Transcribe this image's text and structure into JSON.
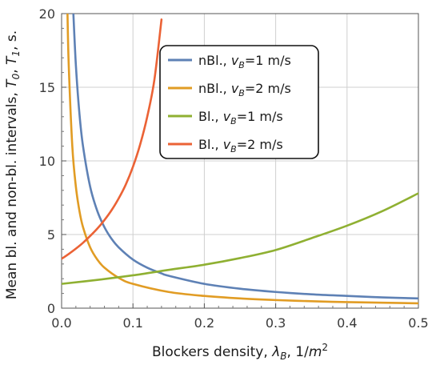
{
  "chart_data": {
    "type": "line",
    "title": "",
    "xlabel": "Blockers density, λ_B, 1/m²",
    "ylabel": "Mean bl. and non-bl. intervals, T_0, T_1, s.",
    "xlim": [
      0,
      0.5
    ],
    "ylim": [
      0,
      20
    ],
    "xticks": [
      0.0,
      0.1,
      0.2,
      0.3,
      0.4,
      0.5
    ],
    "xtick_labels": [
      "0.0",
      "0.1",
      "0.2",
      "0.3",
      "0.4",
      "0.5"
    ],
    "yticks": [
      0,
      5,
      10,
      15,
      20
    ],
    "ytick_labels": [
      "0",
      "5",
      "10",
      "15",
      "20"
    ],
    "grid": true,
    "legend_position": "top-center",
    "series": [
      {
        "name": "nBl., v_B=1 m/s",
        "color": "#5e81b5",
        "x": [
          0.0165,
          0.02,
          0.025,
          0.03,
          0.04,
          0.05,
          0.06,
          0.07,
          0.08,
          0.1,
          0.12,
          0.14,
          0.15,
          0.2,
          0.25,
          0.3,
          0.35,
          0.4,
          0.45,
          0.5
        ],
        "y": [
          20,
          16.5,
          13.2,
          11.0,
          8.25,
          6.6,
          5.5,
          4.71,
          4.13,
          3.3,
          2.75,
          2.36,
          2.2,
          1.65,
          1.32,
          1.1,
          0.94,
          0.83,
          0.73,
          0.66
        ]
      },
      {
        "name": "nBl., v_B=2 m/s",
        "color": "#e19c24",
        "x": [
          0.00825,
          0.01,
          0.015,
          0.02,
          0.025,
          0.03,
          0.04,
          0.05,
          0.06,
          0.08,
          0.1,
          0.15,
          0.2,
          0.25,
          0.3,
          0.35,
          0.4,
          0.45,
          0.5
        ],
        "y": [
          20,
          16.5,
          11.0,
          8.25,
          6.6,
          5.5,
          4.13,
          3.3,
          2.75,
          2.06,
          1.65,
          1.1,
          0.83,
          0.66,
          0.55,
          0.47,
          0.41,
          0.37,
          0.33
        ]
      },
      {
        "name": "Bl., v_B=1 m/s",
        "color": "#8fb032",
        "x": [
          0.0,
          0.05,
          0.1,
          0.15,
          0.2,
          0.25,
          0.3,
          0.35,
          0.4,
          0.45,
          0.5
        ],
        "y": [
          1.65,
          1.92,
          2.23,
          2.6,
          2.95,
          3.4,
          3.95,
          4.75,
          5.6,
          6.6,
          7.8
        ]
      },
      {
        "name": "Bl., v_B=2 m/s",
        "color": "#eb6235",
        "x": [
          0.0,
          0.01,
          0.02,
          0.03,
          0.04,
          0.05,
          0.06,
          0.07,
          0.08,
          0.09,
          0.1,
          0.11,
          0.12,
          0.13,
          0.14
        ],
        "y": [
          3.35,
          3.68,
          4.04,
          4.44,
          4.9,
          5.4,
          5.98,
          6.65,
          7.45,
          8.4,
          9.6,
          11.1,
          13.0,
          15.5,
          19.6
        ]
      }
    ]
  }
}
